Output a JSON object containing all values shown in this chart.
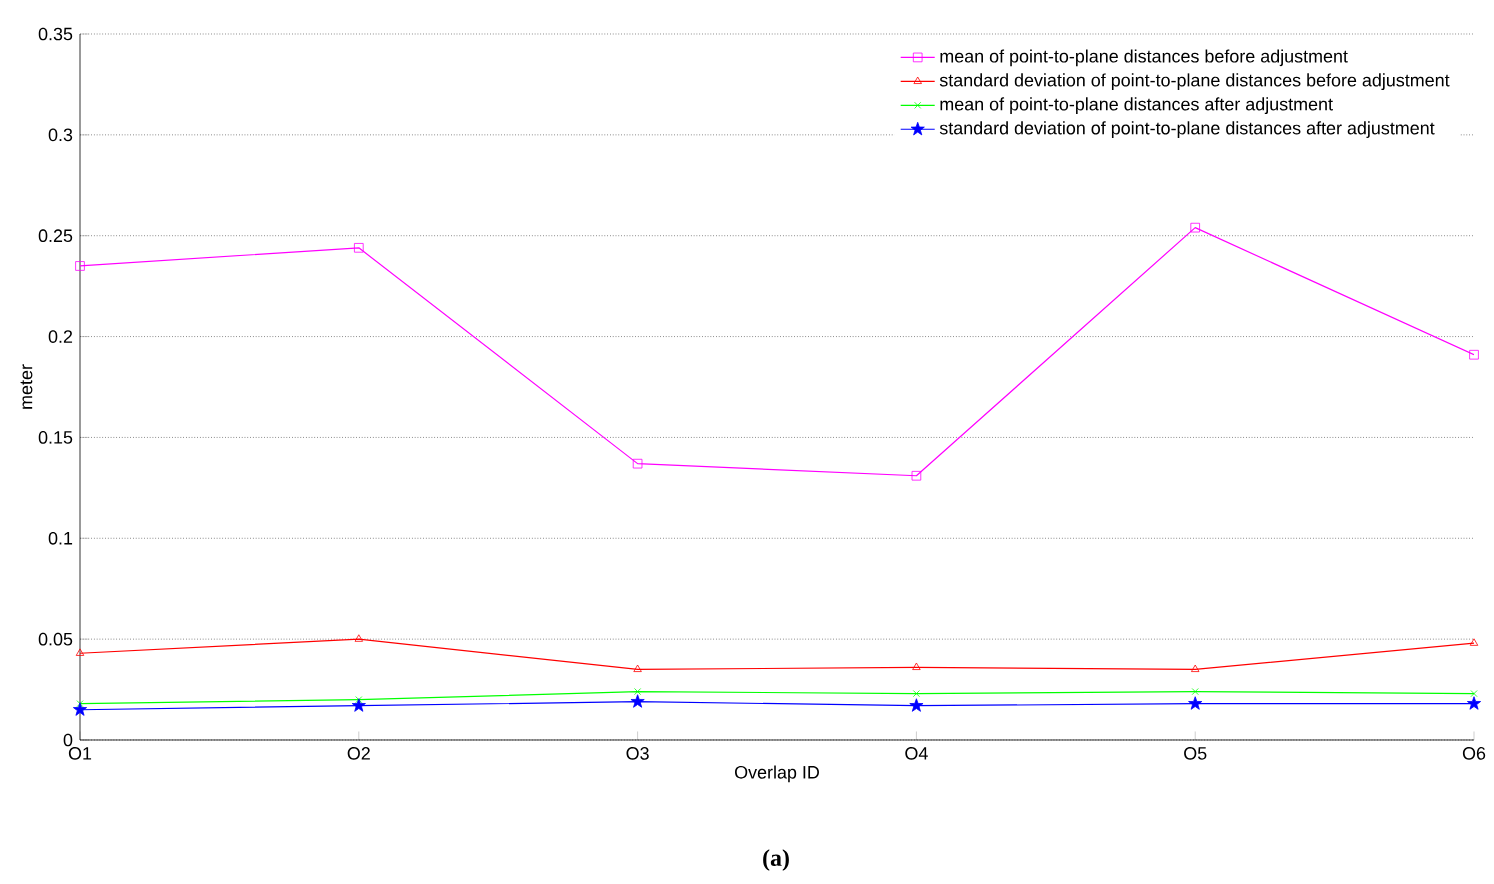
{
  "chart_data": {
    "type": "line",
    "xlabel": "Overlap ID",
    "ylabel": "meter",
    "categories": [
      "O1",
      "O2",
      "O3",
      "O4",
      "O5",
      "O6"
    ],
    "ylim": [
      0,
      0.35
    ],
    "yticks": [
      0,
      0.05,
      0.1,
      0.15,
      0.2,
      0.25,
      0.3,
      0.35
    ],
    "grid": "y",
    "legend": "top right",
    "line_style": "solid",
    "annotations": [
      "(a)"
    ],
    "series": [
      {
        "name": "mean of point-to-plane distances before adjustment",
        "color": "#ff00ff",
        "marker": "square",
        "values": [
          0.235,
          0.244,
          0.137,
          0.131,
          0.254,
          0.191
        ]
      },
      {
        "name": "standard deviation of point-to-plane distances before adjustment",
        "color": "#ff0000",
        "marker": "triangle",
        "values": [
          0.043,
          0.05,
          0.035,
          0.036,
          0.035,
          0.048
        ]
      },
      {
        "name": "mean of point-to-plane distances after adjustment",
        "color": "#00ff00",
        "marker": "cross",
        "values": [
          0.018,
          0.02,
          0.024,
          0.023,
          0.024,
          0.023
        ]
      },
      {
        "name": "standard deviation of point-to-plane distances after adjustment",
        "color": "#0000ff",
        "marker": "star",
        "values": [
          0.015,
          0.017,
          0.019,
          0.017,
          0.018,
          0.018
        ]
      }
    ]
  }
}
